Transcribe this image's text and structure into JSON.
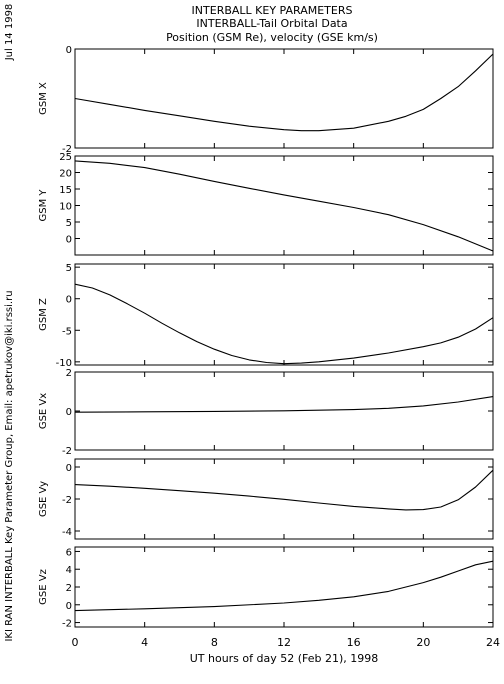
{
  "header": {
    "line1": "INTERBALL KEY PARAMETERS",
    "line2": "INTERBALL-Tail Orbital Data",
    "line3": "Position (GSM Re), velocity (GSE km/s)"
  },
  "side": {
    "date": "Jul 14 1998",
    "credit": "IKI RAN INTERBALL Key Parameter Group, Email: apetrukov@iki.rssi.ru"
  },
  "chart_data": {
    "type": "line",
    "xlabel": "UT hours of day  52 (Feb 21), 1998",
    "xlim": [
      0,
      24
    ],
    "xticks": [
      0,
      4,
      8,
      12,
      16,
      20,
      24
    ],
    "panels": [
      {
        "ylabel": "GSM X",
        "ylim": [
          -2,
          0
        ],
        "yticks": [
          0,
          -2
        ],
        "x": [
          0,
          2,
          4,
          6,
          8,
          10,
          12,
          13,
          14,
          16,
          18,
          19,
          20,
          21,
          22,
          23,
          24
        ],
        "y": [
          -1.0,
          -1.12,
          -1.24,
          -1.35,
          -1.46,
          -1.56,
          -1.63,
          -1.65,
          -1.65,
          -1.6,
          -1.46,
          -1.36,
          -1.22,
          -1.0,
          -0.76,
          -0.44,
          -0.1
        ]
      },
      {
        "ylabel": "GSM Y",
        "ylim": [
          -5,
          25
        ],
        "yticks": [
          25,
          20,
          15,
          10,
          5,
          0
        ],
        "x": [
          0,
          2,
          4,
          6,
          8,
          10,
          12,
          14,
          16,
          18,
          20,
          22,
          24
        ],
        "y": [
          23.5,
          22.8,
          21.5,
          19.5,
          17.3,
          15.2,
          13.2,
          11.3,
          9.4,
          7.2,
          4.2,
          0.5,
          -3.8
        ]
      },
      {
        "ylabel": "GSM Z",
        "ylim": [
          -10.5,
          5.5
        ],
        "yticks": [
          5,
          0,
          -5,
          -10
        ],
        "x": [
          0,
          1,
          2,
          3,
          4,
          5,
          6,
          7,
          8,
          9,
          10,
          11,
          12,
          13,
          14,
          16,
          18,
          20,
          21,
          22,
          23,
          24
        ],
        "y": [
          2.3,
          1.7,
          0.6,
          -0.8,
          -2.3,
          -3.9,
          -5.4,
          -6.8,
          -8.0,
          -9.0,
          -9.7,
          -10.1,
          -10.3,
          -10.2,
          -10.0,
          -9.4,
          -8.6,
          -7.6,
          -7.0,
          -6.1,
          -4.8,
          -3.0
        ]
      },
      {
        "ylabel": "GSE Vx",
        "ylim": [
          -2,
          2
        ],
        "yticks": [
          2,
          0,
          -2
        ],
        "x": [
          0,
          4,
          8,
          12,
          16,
          18,
          20,
          22,
          24
        ],
        "y": [
          -0.06,
          -0.04,
          -0.02,
          0.01,
          0.07,
          0.14,
          0.26,
          0.46,
          0.74
        ]
      },
      {
        "ylabel": "GSE Vy",
        "ylim": [
          -4.5,
          0.5
        ],
        "yticks": [
          0,
          -2,
          -4
        ],
        "x": [
          0,
          2,
          4,
          6,
          8,
          10,
          12,
          14,
          16,
          18,
          19,
          20,
          21,
          22,
          23,
          24
        ],
        "y": [
          -1.1,
          -1.2,
          -1.33,
          -1.48,
          -1.64,
          -1.82,
          -2.02,
          -2.25,
          -2.46,
          -2.62,
          -2.68,
          -2.66,
          -2.5,
          -2.05,
          -1.25,
          -0.2
        ]
      },
      {
        "ylabel": "GSE Vz",
        "ylim": [
          -2.5,
          6.5
        ],
        "yticks": [
          6,
          4,
          2,
          0,
          -2
        ],
        "x": [
          0,
          4,
          8,
          12,
          14,
          16,
          18,
          20,
          21,
          22,
          23,
          24
        ],
        "y": [
          -0.65,
          -0.45,
          -0.2,
          0.2,
          0.5,
          0.9,
          1.5,
          2.5,
          3.1,
          3.8,
          4.5,
          4.9
        ]
      }
    ]
  }
}
